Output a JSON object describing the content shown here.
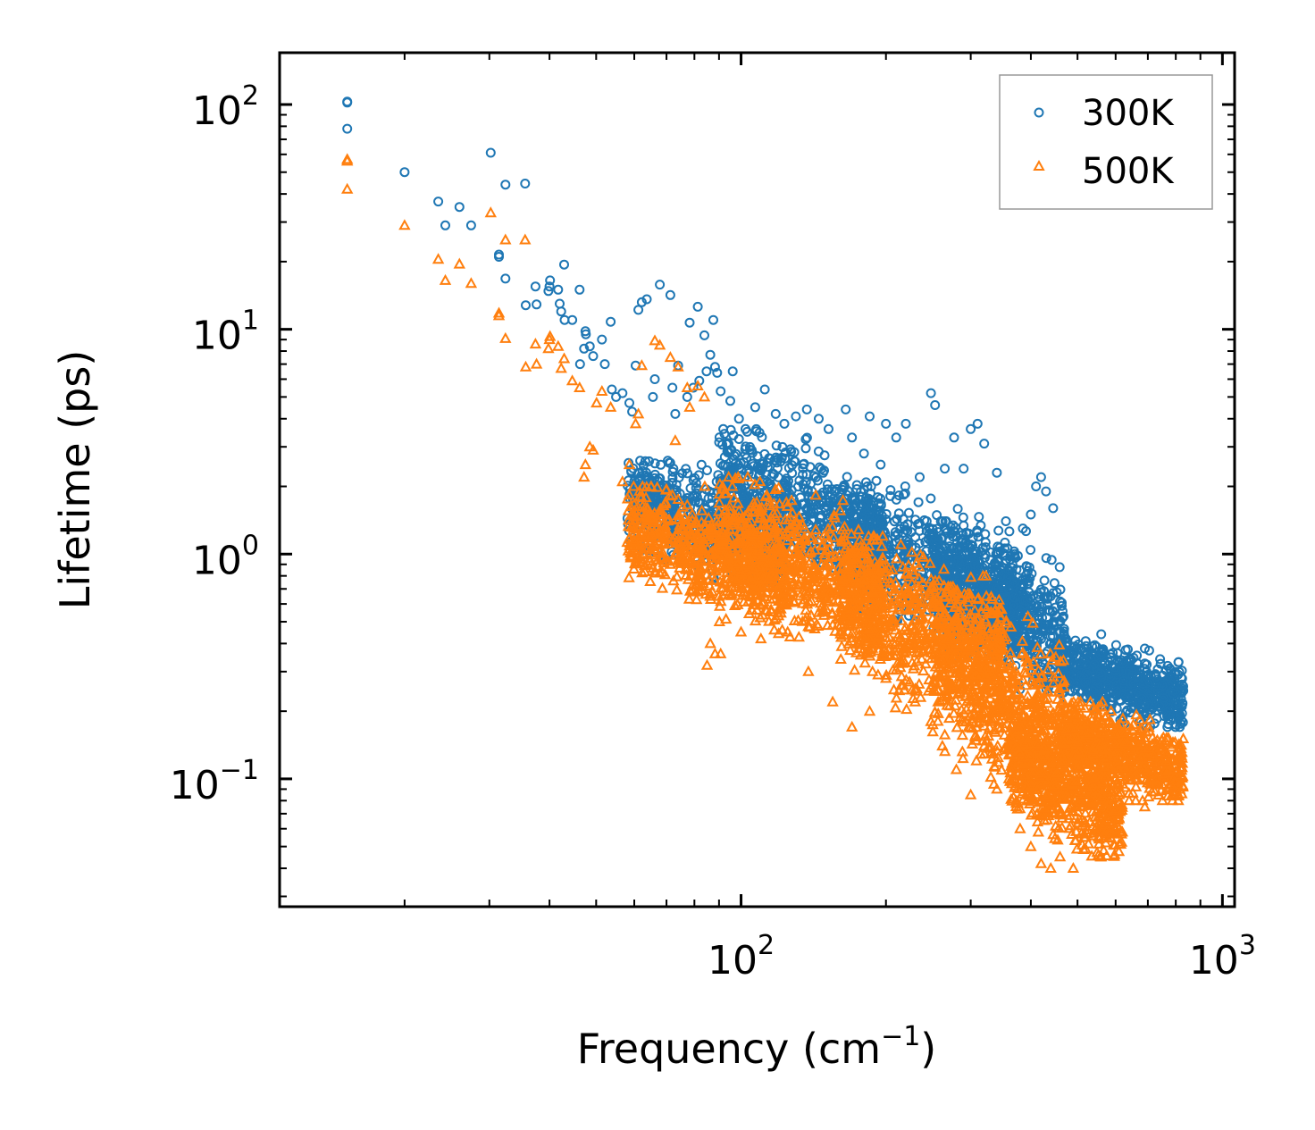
{
  "chart_data": {
    "type": "scatter",
    "title": "",
    "xlabel": "Frequency (cm",
    "xlabel_sup": "−1",
    "xlabel_tail": ")",
    "ylabel": "Lifetime (ps)",
    "xscale": "log",
    "yscale": "log",
    "xlim": [
      11,
      1060
    ],
    "ylim": [
      0.027,
      170
    ],
    "x_tick_labels": [
      {
        "value": 100,
        "base": "10",
        "exp": "2"
      },
      {
        "value": 1000,
        "base": "10",
        "exp": "3"
      }
    ],
    "y_tick_labels": [
      {
        "value": 0.1,
        "base": "10",
        "exp": "−1"
      },
      {
        "value": 1,
        "base": "10",
        "exp": "0"
      },
      {
        "value": 10,
        "base": "10",
        "exp": "1"
      },
      {
        "value": 100,
        "base": "10",
        "exp": "2"
      }
    ],
    "legend": {
      "placement": "top-right",
      "entries": [
        "300K",
        "500K"
      ]
    },
    "series": [
      {
        "name": "300K",
        "marker": "circle",
        "color": "#1f77b4",
        "points": [
          [
            15.2,
            103
          ],
          [
            15.2,
            102
          ],
          [
            15.2,
            78
          ],
          [
            20,
            50
          ],
          [
            23.5,
            37
          ],
          [
            24.3,
            29
          ],
          [
            26,
            35
          ],
          [
            27.5,
            29
          ],
          [
            30.2,
            61
          ],
          [
            31.4,
            21
          ],
          [
            31.4,
            21.5
          ],
          [
            32.4,
            44
          ],
          [
            32.4,
            16.8
          ],
          [
            35.6,
            44.5
          ],
          [
            35.7,
            12.8
          ],
          [
            37.4,
            15.5
          ],
          [
            37.6,
            12.9
          ],
          [
            39.8,
            14.8
          ],
          [
            40,
            15.5
          ],
          [
            40.1,
            16.5
          ],
          [
            41.7,
            15
          ],
          [
            42,
            13
          ],
          [
            42.3,
            12
          ],
          [
            42.9,
            19.4
          ],
          [
            43,
            11
          ],
          [
            44.6,
            11
          ],
          [
            46.2,
            15
          ],
          [
            46.3,
            7
          ],
          [
            47.2,
            8.2
          ],
          [
            47.5,
            9.8
          ],
          [
            47.6,
            9.5
          ],
          [
            48.5,
            8.4
          ],
          [
            49.3,
            7.6
          ],
          [
            51.4,
            9
          ],
          [
            52.1,
            7
          ],
          [
            53.6,
            10.8
          ],
          [
            53.9,
            5.4
          ],
          [
            55,
            5
          ],
          [
            56.7,
            5.2
          ],
          [
            58.6,
            4.7
          ],
          [
            59.4,
            4.3
          ],
          [
            60.4,
            6.9
          ],
          [
            61.2,
            12.2
          ],
          [
            62.2,
            13.2
          ],
          [
            63.7,
            13.6
          ],
          [
            65.6,
            5
          ],
          [
            66.2,
            6
          ],
          [
            67.8,
            15.8
          ],
          [
            71.3,
            14.2
          ],
          [
            72,
            5.5
          ],
          [
            73,
            4.2
          ],
          [
            74,
            6.9
          ],
          [
            77.3,
            5
          ],
          [
            78.2,
            10.7
          ],
          [
            79.6,
            5.5
          ],
          [
            81.3,
            12.6
          ],
          [
            81.9,
            5.9
          ],
          [
            83.9,
            9.4
          ],
          [
            84.8,
            6.5
          ],
          [
            86.3,
            7.7
          ],
          [
            87.6,
            11
          ],
          [
            88.3,
            6.8
          ],
          [
            89.2,
            6.4
          ],
          [
            90.7,
            5.3
          ],
          [
            95,
            4.8
          ],
          [
            96.1,
            6.5
          ],
          [
            99,
            4
          ],
          [
            103,
            3.5
          ],
          [
            107,
            4.5
          ],
          [
            112,
            5.4
          ],
          [
            118,
            4.2
          ],
          [
            123,
            3.8
          ],
          [
            130,
            4.1
          ],
          [
            137,
            4.4
          ],
          [
            145,
            4
          ],
          [
            152,
            3.6
          ],
          [
            165,
            4.4
          ],
          [
            170,
            3.3
          ],
          [
            180,
            2.8
          ],
          [
            185,
            4.1
          ],
          [
            195,
            2.5
          ],
          [
            200,
            3.8
          ],
          [
            210,
            3.3
          ],
          [
            220,
            3.8
          ],
          [
            235,
            2.2
          ],
          [
            243,
            1.4
          ],
          [
            248,
            5.2
          ],
          [
            253,
            4.6
          ],
          [
            265,
            2.4
          ],
          [
            277,
            3.3
          ],
          [
            290,
            2.4
          ],
          [
            300,
            3.6
          ],
          [
            310,
            3.8
          ],
          [
            320,
            3.1
          ],
          [
            340,
            2.3
          ],
          [
            355,
            1.4
          ],
          [
            370,
            1.0
          ],
          [
            385,
            1.3
          ],
          [
            400,
            1.5
          ],
          [
            410,
            2.0
          ],
          [
            420,
            2.2
          ],
          [
            430,
            1.9
          ],
          [
            445,
            1.6
          ],
          [
            460,
            0.5
          ],
          [
            480,
            0.32
          ],
          [
            520,
            0.41
          ],
          [
            560,
            0.44
          ],
          [
            600,
            0.34
          ],
          [
            650,
            0.29
          ],
          [
            690,
            0.38
          ],
          [
            730,
            0.26
          ],
          [
            790,
            0.24
          ],
          [
            810,
            0.33
          ]
        ],
        "clusters": [
          {
            "x": [
              58,
              125
            ],
            "y": [
              0.75,
              2.6
            ]
          },
          {
            "x": [
              90,
              200
            ],
            "y": [
              0.7,
              3.6
            ]
          },
          {
            "x": [
              160,
              400
            ],
            "y": [
              0.35,
              2.0
            ]
          },
          {
            "x": [
              250,
              470
            ],
            "y": [
              0.25,
              1.4
            ]
          },
          {
            "x": [
              460,
              830
            ],
            "y": [
              0.17,
              0.42
            ]
          }
        ]
      },
      {
        "name": "500K",
        "marker": "triangle",
        "color": "#ff7f0e",
        "points": [
          [
            15.2,
            57
          ],
          [
            15.2,
            56
          ],
          [
            15.2,
            42
          ],
          [
            20,
            29
          ],
          [
            23.5,
            20.5
          ],
          [
            24.3,
            16.5
          ],
          [
            26,
            19.5
          ],
          [
            27.5,
            16
          ],
          [
            30.2,
            33
          ],
          [
            31.4,
            11.5
          ],
          [
            31.4,
            11.8
          ],
          [
            32.4,
            25
          ],
          [
            32.4,
            9.1
          ],
          [
            35.6,
            25
          ],
          [
            35.7,
            6.8
          ],
          [
            37.4,
            8.6
          ],
          [
            37.6,
            7
          ],
          [
            39.8,
            8.2
          ],
          [
            40,
            9
          ],
          [
            40.1,
            9.3
          ],
          [
            41.7,
            8.4
          ],
          [
            42.3,
            6.7
          ],
          [
            42.9,
            7.4
          ],
          [
            44.6,
            5.9
          ],
          [
            46.2,
            5.5
          ],
          [
            47.2,
            2.2
          ],
          [
            47.5,
            2.5
          ],
          [
            48.5,
            3
          ],
          [
            49.3,
            2.9
          ],
          [
            50.1,
            4.7
          ],
          [
            51.4,
            5.3
          ],
          [
            53.6,
            4.5
          ],
          [
            56.7,
            2.1
          ],
          [
            58.6,
            2.5
          ],
          [
            60.4,
            3.8
          ],
          [
            61.2,
            4.2
          ],
          [
            62.2,
            6.9
          ],
          [
            66.2,
            8.9
          ],
          [
            67.8,
            8.5
          ],
          [
            71.3,
            7.5
          ],
          [
            73,
            3.2
          ],
          [
            74,
            6.8
          ],
          [
            77.3,
            5.5
          ],
          [
            78.2,
            4.5
          ],
          [
            81.3,
            5.6
          ],
          [
            83.9,
            5
          ],
          [
            85,
            0.32
          ],
          [
            86.3,
            0.4
          ],
          [
            88.3,
            0.36
          ],
          [
            90.7,
            0.36
          ],
          [
            100,
            0.45
          ],
          [
            110,
            0.42
          ],
          [
            125,
            0.45
          ],
          [
            138,
            0.3
          ],
          [
            155,
            0.22
          ],
          [
            170,
            0.17
          ],
          [
            185,
            0.2
          ],
          [
            200,
            0.28
          ],
          [
            215,
            0.26
          ],
          [
            230,
            0.22
          ],
          [
            248,
            0.18
          ],
          [
            262,
            0.14
          ],
          [
            280,
            0.11
          ],
          [
            300,
            0.085
          ],
          [
            320,
            0.14
          ],
          [
            340,
            0.09
          ],
          [
            360,
            0.1
          ],
          [
            380,
            0.06
          ],
          [
            400,
            0.05
          ],
          [
            420,
            0.042
          ],
          [
            440,
            0.04
          ],
          [
            460,
            0.045
          ],
          [
            490,
            0.04
          ],
          [
            520,
            0.055
          ],
          [
            560,
            0.045
          ],
          [
            600,
            0.06
          ],
          [
            640,
            0.08
          ],
          [
            690,
            0.075
          ],
          [
            730,
            0.1
          ],
          [
            780,
            0.11
          ],
          [
            810,
            0.12
          ]
        ],
        "clusters": [
          {
            "x": [
              58,
              125
            ],
            "y": [
              0.5,
              2.0
            ]
          },
          {
            "x": [
              90,
              200
            ],
            "y": [
              0.35,
              2.2
            ]
          },
          {
            "x": [
              160,
              350
            ],
            "y": [
              0.18,
              1.2
            ]
          },
          {
            "x": [
              250,
              470
            ],
            "y": [
              0.07,
              0.8
            ]
          },
          {
            "x": [
              360,
              620
            ],
            "y": [
              0.045,
              0.2
            ]
          },
          {
            "x": [
              460,
              830
            ],
            "y": [
              0.08,
              0.22
            ]
          }
        ]
      }
    ]
  }
}
